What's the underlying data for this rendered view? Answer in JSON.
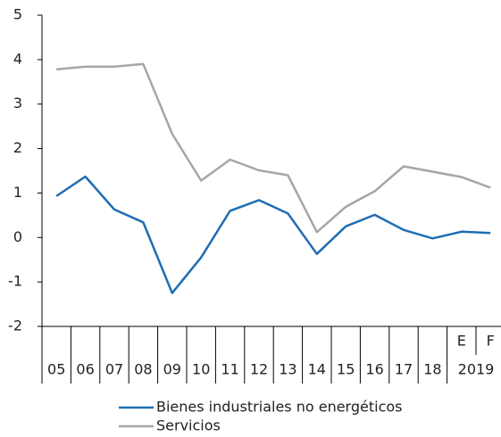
{
  "chart_data": {
    "type": "line",
    "categories": [
      "05",
      "06",
      "07",
      "08",
      "09",
      "10",
      "11",
      "12",
      "13",
      "14",
      "15",
      "16",
      "17",
      "18",
      "E",
      "F"
    ],
    "category_group": "2019",
    "series": [
      {
        "name": "Bienes industriales no energéticos",
        "color": "#1f6db3",
        "values": [
          0.93,
          1.37,
          0.63,
          0.34,
          -1.25,
          -0.45,
          0.6,
          0.84,
          0.54,
          -0.37,
          0.25,
          0.51,
          0.17,
          -0.02,
          0.13,
          0.1
        ]
      },
      {
        "name": "Servicios",
        "color": "#a6a6a6",
        "values": [
          3.78,
          3.84,
          3.84,
          3.9,
          2.33,
          1.28,
          1.75,
          1.51,
          1.4,
          0.12,
          0.69,
          1.04,
          1.6,
          1.48,
          1.36,
          1.12
        ]
      }
    ],
    "ylim": [
      -2,
      5
    ],
    "yticks": [
      -2,
      -1,
      0,
      1,
      2,
      3,
      4,
      5
    ]
  }
}
